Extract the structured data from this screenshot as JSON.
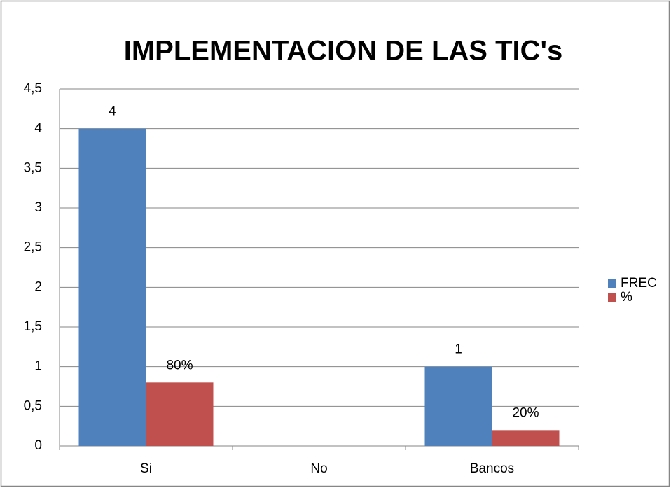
{
  "chart_data": {
    "type": "bar",
    "title": "IMPLEMENTACION DE LAS  TIC's",
    "categories": [
      "Si",
      "No",
      "Bancos"
    ],
    "series": [
      {
        "name": "FREC",
        "color": "#4f81bd",
        "values": [
          4,
          null,
          1
        ]
      },
      {
        "name": "%",
        "color": "#c0504d",
        "values": [
          0.8,
          null,
          0.2
        ],
        "value_labels": [
          "80%",
          null,
          "20%"
        ]
      }
    ],
    "ylim": [
      0,
      4.5
    ],
    "yticks": [
      0,
      {
        "value": 0.5,
        "label": "0,5"
      },
      1,
      {
        "value": 1.5,
        "label": "1,5"
      },
      2,
      {
        "value": 2.5,
        "label": "2,5"
      },
      3,
      {
        "value": 3.5,
        "label": "3,5"
      },
      4,
      {
        "value": 4.5,
        "label": "4,5"
      }
    ],
    "grid": true,
    "legend": "right"
  }
}
